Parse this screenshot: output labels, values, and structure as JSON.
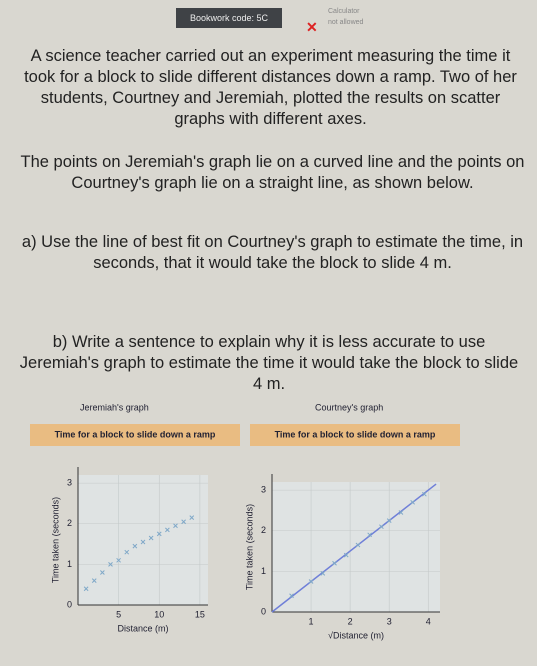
{
  "header": {
    "bookwork_code": "Bookwork code: 5C",
    "calculator": "Calculator",
    "calculator_note": "not allowed"
  },
  "question": {
    "intro": "A science teacher carried out an experiment measuring the time it took for a block to slide different distances down a ramp. Two of her students, Courtney and Jeremiah, plotted the results on scatter graphs with different axes.",
    "description": "The points on Jeremiah's graph lie on a curved line and the points on Courtney's graph lie on a straight line, as shown below.",
    "part_a": "a) Use the line of best fit on Courtney's graph to estimate the time, in seconds, that it would take the block to slide 4 m.",
    "part_b": "b) Write a sentence to explain why it is less accurate to use Jeremiah's graph to estimate the time it would take the block to slide 4 m."
  },
  "graphs": [
    {
      "name": "Jeremiah's graph",
      "title": "Time for a block to slide down a ramp",
      "x_label": "Distance (m)",
      "y_label": "Time taken (seconds)",
      "xlim": [
        0,
        16
      ],
      "ylim": [
        0,
        3.2
      ],
      "xticks": [
        5,
        10,
        15
      ],
      "yticks": [
        0,
        1,
        2,
        3
      ],
      "x": [
        1,
        2,
        3,
        4,
        5,
        6,
        7,
        8,
        9,
        10,
        11,
        12,
        13,
        14
      ],
      "y": [
        0.4,
        0.6,
        0.8,
        1.0,
        1.1,
        1.3,
        1.45,
        1.55,
        1.65,
        1.75,
        1.85,
        1.95,
        2.05,
        2.15
      ]
    },
    {
      "name": "Courtney's graph",
      "title": "Time for a block to slide down a ramp",
      "x_label": "√Distance (m)",
      "y_label": "Time taken (seconds)",
      "xlim": [
        0,
        4.3
      ],
      "ylim": [
        0,
        3.2
      ],
      "xticks": [
        1,
        2,
        3,
        4
      ],
      "yticks": [
        0,
        1,
        2,
        3
      ],
      "x": [
        0.5,
        1,
        1.3,
        1.6,
        1.9,
        2.2,
        2.5,
        2.8,
        3,
        3.3,
        3.6,
        3.9
      ],
      "y": [
        0.4,
        0.75,
        0.95,
        1.2,
        1.4,
        1.65,
        1.9,
        2.1,
        2.25,
        2.45,
        2.7,
        2.9
      ],
      "line": {
        "x": [
          0,
          4.2
        ],
        "y": [
          0,
          3.15
        ]
      }
    }
  ]
}
